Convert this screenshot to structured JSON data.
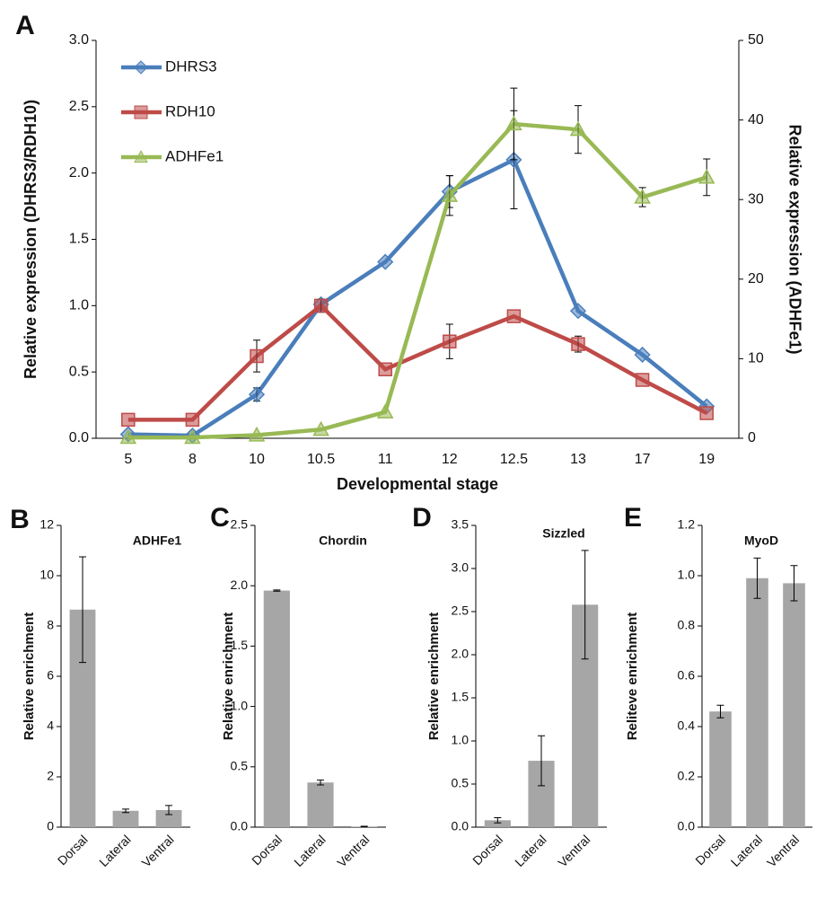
{
  "chart_data": [
    {
      "type": "line",
      "label": "A",
      "categories": [
        "5",
        "8",
        "10",
        "10.5",
        "11",
        "12",
        "12.5",
        "13",
        "17",
        "19"
      ],
      "x_label": "Developmental stage",
      "y_label": "Relative expression (DHRS3/RDH10)",
      "y2_label": "Relative expression (ADHFe1)",
      "ylim": [
        0,
        3
      ],
      "yticks": [
        {
          "value": 0,
          "label": "0.0"
        },
        0.5,
        {
          "value": 1,
          "label": "1.0"
        },
        1.5,
        {
          "value": 2,
          "label": "2.0"
        },
        2.5,
        {
          "value": 3,
          "label": "3.0"
        }
      ],
      "y2lim": [
        0,
        50
      ],
      "y2ticks": [
        0,
        10,
        20,
        30,
        40,
        50
      ],
      "legend": "top-left",
      "series": [
        {
          "name": "DHRS3",
          "color": "#4a7ebb",
          "marker": "diamond",
          "values": [
            0.03,
            0.02,
            0.33,
            1.01,
            1.33,
            1.86,
            2.1,
            0.96,
            0.63,
            0.24
          ],
          "errors": [
            null,
            null,
            0.05,
            0.04,
            null,
            0.12,
            0.37,
            null,
            null,
            null
          ]
        },
        {
          "name": "RDH10",
          "color": "#be4b48",
          "marker": "square",
          "values": [
            0.14,
            0.14,
            0.62,
            1.0,
            0.52,
            0.73,
            0.92,
            0.71,
            0.44,
            0.19
          ],
          "errors": [
            null,
            null,
            0.12,
            0.05,
            null,
            0.13,
            null,
            0.06,
            null,
            null
          ]
        },
        {
          "name": "ADHFe1",
          "color": "#98b954",
          "marker": "triangle",
          "axis": "y2",
          "values": [
            0.1,
            0.1,
            0.4,
            1.1,
            3.3,
            30.5,
            39.5,
            38.8,
            30.3,
            32.8
          ],
          "errors": [
            null,
            null,
            null,
            null,
            null,
            2.5,
            4.5,
            3.0,
            1.2,
            2.3
          ]
        }
      ]
    },
    {
      "type": "bar",
      "label": "B",
      "title": "ADHFe1",
      "y_label": "Relative enrichment",
      "categories": [
        "Dorsal",
        "Lateral",
        "Ventral"
      ],
      "color": "#a6a6a6",
      "values": [
        8.65,
        0.65,
        0.68
      ],
      "errors": [
        2.1,
        0.07,
        0.18
      ],
      "ylim": [
        0,
        12
      ],
      "yticks": [
        0,
        2,
        4,
        6,
        8,
        10,
        12
      ]
    },
    {
      "type": "bar",
      "label": "C",
      "title": "Chordin",
      "y_label": "Relative enrichment",
      "categories": [
        "Dorsal",
        "Lateral",
        "Ventral"
      ],
      "color": "#a6a6a6",
      "values": [
        1.96,
        0.37,
        0.005
      ],
      "errors": [
        0.005,
        0.02,
        0.002
      ],
      "ylim": [
        0,
        2.5
      ],
      "yticks": [
        {
          "value": 0,
          "label": "0.0"
        },
        0.5,
        {
          "value": 1,
          "label": "1.0"
        },
        1.5,
        {
          "value": 2,
          "label": "2.0"
        },
        2.5
      ]
    },
    {
      "type": "bar",
      "label": "D",
      "title": "Sizzled",
      "y_label": "Relative enrichment",
      "categories": [
        "Dorsal",
        "Lateral",
        "Ventral"
      ],
      "color": "#a6a6a6",
      "values": [
        0.08,
        0.77,
        2.58
      ],
      "errors": [
        0.03,
        0.29,
        0.63
      ],
      "ylim": [
        0,
        3.5
      ],
      "yticks": [
        {
          "value": 0,
          "label": "0.0"
        },
        0.5,
        {
          "value": 1,
          "label": "1.0"
        },
        1.5,
        {
          "value": 2,
          "label": "2.0"
        },
        2.5,
        {
          "value": 3,
          "label": "3.0"
        },
        3.5
      ]
    },
    {
      "type": "bar",
      "label": "E",
      "title": "MyoD",
      "y_label": "Reliteve enrichment",
      "categories": [
        "Dorsal",
        "Lateral",
        "Ventral"
      ],
      "color": "#a6a6a6",
      "values": [
        0.46,
        0.99,
        0.97
      ],
      "errors": [
        0.025,
        0.08,
        0.07
      ],
      "ylim": [
        0,
        1.2
      ],
      "yticks": [
        {
          "value": 0,
          "label": "0.0"
        },
        0.2,
        0.4,
        0.6,
        0.8,
        {
          "value": 1,
          "label": "1.0"
        },
        1.2
      ]
    }
  ]
}
